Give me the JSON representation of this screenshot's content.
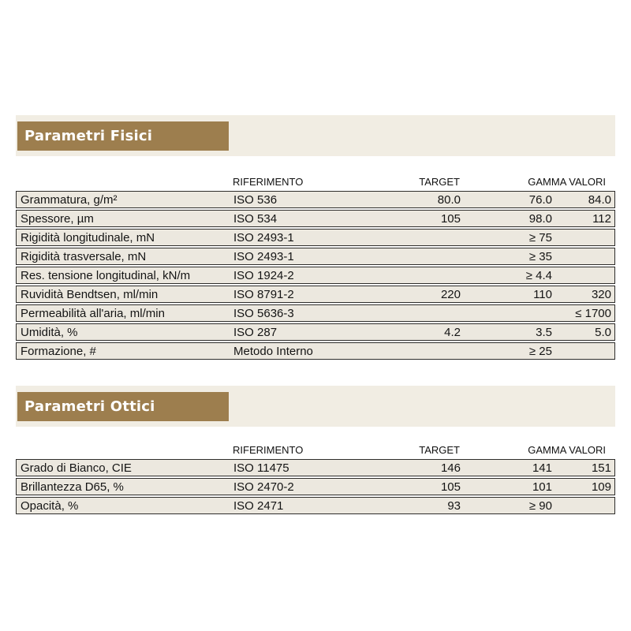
{
  "colors": {
    "accent_brown": "#9d7e4e",
    "band_beige": "#f1ede3",
    "row_fill": "#ece8df",
    "row_border": "#2e2d2b",
    "title_text": "#ffffff",
    "body_text": "#141414"
  },
  "columns": {
    "riferimento": "RIFERIMENTO",
    "target": "TARGET",
    "gamma": "GAMMA VALORI"
  },
  "sections": [
    {
      "title": "Parametri Fisici",
      "rows": [
        {
          "param": "Grammatura, g/m²",
          "rif": "ISO 536",
          "target": "80.0",
          "gmin": "76.0",
          "gmax": "84.0"
        },
        {
          "param": "Spessore, µm",
          "rif": "ISO 534",
          "target": "105",
          "gmin": "98.0",
          "gmax": "112"
        },
        {
          "param": "Rigidità longitudinale, mN",
          "rif": "ISO 2493-1",
          "target": "",
          "gmin": "≥ 75",
          "gmax": ""
        },
        {
          "param": "Rigidità trasversale, mN",
          "rif": "ISO 2493-1",
          "target": "",
          "gmin": "≥ 35",
          "gmax": ""
        },
        {
          "param": "Res. tensione longitudinal, kN/m",
          "rif": "ISO 1924-2",
          "target": "",
          "gmin": "≥ 4.4",
          "gmax": ""
        },
        {
          "param": "Ruvidità Bendtsen, ml/min",
          "rif": "ISO 8791-2",
          "target": "220",
          "gmin": "110",
          "gmax": "320"
        },
        {
          "param": "Permeabilità all'aria, ml/min",
          "rif": "ISO 5636-3",
          "target": "",
          "gmin": "",
          "gmax": "≤ 1700"
        },
        {
          "param": "Umidità, %",
          "rif": "ISO 287",
          "target": "4.2",
          "gmin": "3.5",
          "gmax": "5.0"
        },
        {
          "param": "Formazione, #",
          "rif": "Metodo Interno",
          "target": "",
          "gmin": "≥ 25",
          "gmax": ""
        }
      ]
    },
    {
      "title": "Parametri Ottici",
      "rows": [
        {
          "param": "Grado di Bianco, CIE",
          "rif": "ISO 11475",
          "target": "146",
          "gmin": "141",
          "gmax": "151"
        },
        {
          "param": "Brillantezza D65, %",
          "rif": "ISO 2470-2",
          "target": "105",
          "gmin": "101",
          "gmax": "109"
        },
        {
          "param": "Opacità, %",
          "rif": "ISO 2471",
          "target": "93",
          "gmin": "≥ 90",
          "gmax": ""
        }
      ]
    }
  ]
}
